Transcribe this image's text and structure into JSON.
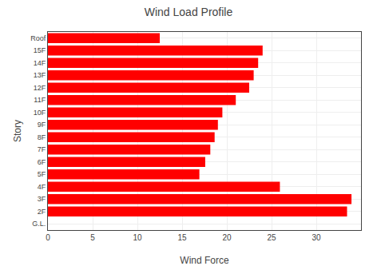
{
  "chart_data": {
    "type": "bar",
    "orientation": "horizontal",
    "title": "Wind Load Profile",
    "x_label": "Wind Force",
    "y_label": "Story",
    "categories": [
      "G.L.",
      "2F",
      "3F",
      "4F",
      "5F",
      "6F",
      "7F",
      "8F",
      "9F",
      "10F",
      "11F",
      "12F",
      "13F",
      "14F",
      "15F",
      "Roof"
    ],
    "values": [
      0.0,
      33.437368,
      33.933719,
      25.930303,
      16.928434,
      17.582213,
      18.151522,
      18.635166,
      19.0,
      19.5,
      21.0,
      22.5,
      23.0,
      23.5,
      24.0,
      12.5
    ],
    "color": "#ff0000",
    "xlim": [
      0,
      35
    ],
    "xticks": [
      0,
      5,
      10,
      15,
      20,
      25,
      30
    ],
    "grid": true
  }
}
